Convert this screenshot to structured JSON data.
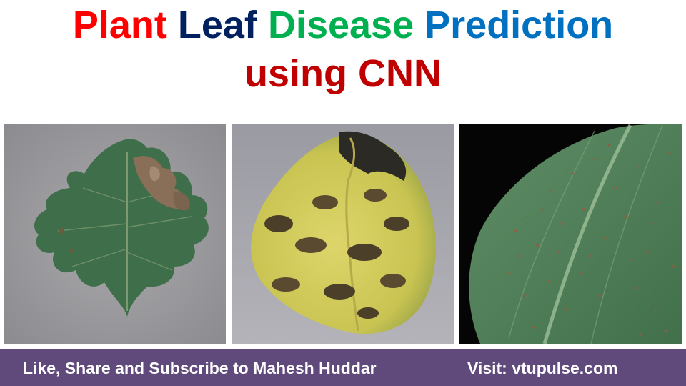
{
  "title": {
    "line1": [
      {
        "text": "Plant",
        "color": "#ff0000"
      },
      {
        "text": "Leaf",
        "color": "#002060"
      },
      {
        "text": "Disease",
        "color": "#00b050"
      },
      {
        "text": "Prediction",
        "color": "#0070c0"
      }
    ],
    "line2": {
      "text": "using CNN",
      "color": "#c00000"
    }
  },
  "images": [
    {
      "icon": "tomato-leaf-blight-photo"
    },
    {
      "icon": "yellow-leaf-dark-spot-photo"
    },
    {
      "icon": "corn-leaf-rust-photo"
    }
  ],
  "footer": {
    "left_text": "Like, Share and Subscribe to Mahesh Huddar",
    "right_text": "Visit: vtupulse.com",
    "background": "#604a7b"
  }
}
